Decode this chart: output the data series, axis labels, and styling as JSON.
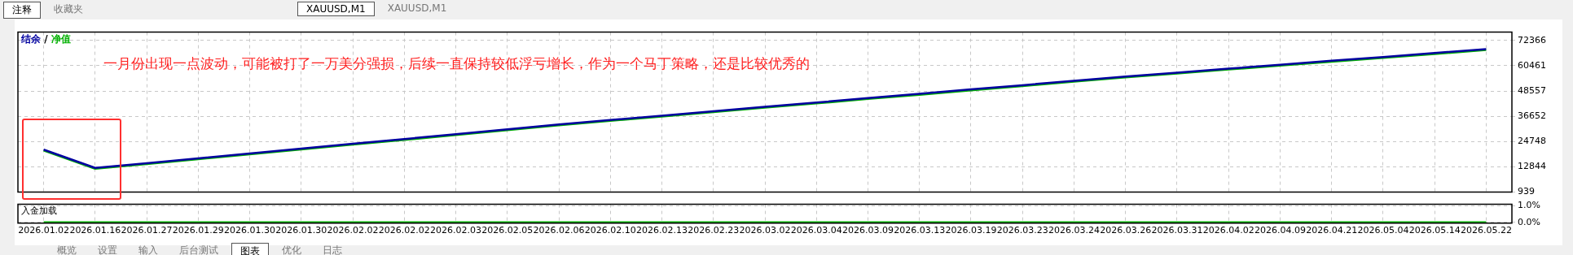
{
  "chart_data": [
    {
      "type": "line",
      "categories": [
        "2026.01.02",
        "2026.01.16",
        "2026.01.27",
        "2026.01.29",
        "2026.01.30",
        "2026.01.30",
        "2026.02.02",
        "2026.02.02",
        "2026.02.03",
        "2026.02.05",
        "2026.02.06",
        "2026.02.10",
        "2026.02.13",
        "2026.02.23",
        "2026.03.02",
        "2026.03.04",
        "2026.03.09",
        "2026.03.13",
        "2026.03.19",
        "2026.03.23",
        "2026.03.24",
        "2026.03.26",
        "2026.03.31",
        "2026.04.02",
        "2026.04.09",
        "2026.04.21",
        "2026.05.04",
        "2026.05.14",
        "2026.05.22"
      ],
      "series": [
        {
          "name": "结余",
          "color": "#0000a0",
          "values": [
            20900,
            12300,
            14500,
            16800,
            19100,
            21400,
            23700,
            25900,
            28200,
            30500,
            32800,
            34900,
            36900,
            39000,
            41100,
            43100,
            45200,
            47200,
            49300,
            51300,
            53400,
            55400,
            57200,
            59100,
            60900,
            62800,
            64600,
            66500,
            68300
          ]
        },
        {
          "name": "净值",
          "color": "#00b000",
          "values": [
            20500,
            11900,
            14100,
            16400,
            18700,
            21000,
            23300,
            25500,
            27800,
            30100,
            32400,
            34500,
            36500,
            38600,
            40700,
            42700,
            44800,
            46800,
            48900,
            50900,
            53000,
            55000,
            56800,
            58700,
            60500,
            62400,
            64200,
            66000,
            67900
          ]
        }
      ],
      "ylim": [
        939,
        76300
      ],
      "yticks": [
        939,
        12844,
        24748,
        36652,
        48557,
        60461,
        72366
      ],
      "grid": true,
      "legend": "top left",
      "tick_labels": "y",
      "annotations": [
        "一月份出现一点波动，可能被打了一万美分强损，后续一直保持较低浮亏增长，作为一个马丁策略，还是比较优秀的",
        "注释",
        "收藏夹",
        "XAUUSD,M1",
        "XAUUSD,M1",
        "概览",
        "设置",
        "输入",
        "后台测试",
        "图表",
        "优化",
        "日志",
        "/"
      ]
    },
    {
      "type": "line",
      "title": "入金加载",
      "categories": [
        "2026.01.02",
        "2026.01.16",
        "2026.01.27",
        "2026.01.29",
        "2026.01.30",
        "2026.01.30",
        "2026.02.02",
        "2026.02.02",
        "2026.02.03",
        "2026.02.05",
        "2026.02.06",
        "2026.02.10",
        "2026.02.13",
        "2026.02.23",
        "2026.03.02",
        "2026.03.04",
        "2026.03.09",
        "2026.03.13",
        "2026.03.19",
        "2026.03.23",
        "2026.03.24",
        "2026.03.26",
        "2026.03.31",
        "2026.04.02",
        "2026.04.09",
        "2026.04.21",
        "2026.05.04",
        "2026.05.14",
        "2026.05.22"
      ],
      "color": "#00b000",
      "values": [
        0,
        0,
        0,
        0,
        0,
        0,
        0,
        0,
        0,
        0,
        0,
        0,
        0,
        0,
        0,
        0,
        0,
        0,
        0,
        0,
        0,
        0,
        0,
        0,
        0,
        0,
        0,
        0,
        0
      ],
      "ylim": [
        -0.05,
        1.1
      ],
      "yticks": [
        {
          "value": 0,
          "label": "0.0%"
        },
        {
          "value": 1,
          "label": "1.0%"
        }
      ],
      "grid": true
    }
  ]
}
